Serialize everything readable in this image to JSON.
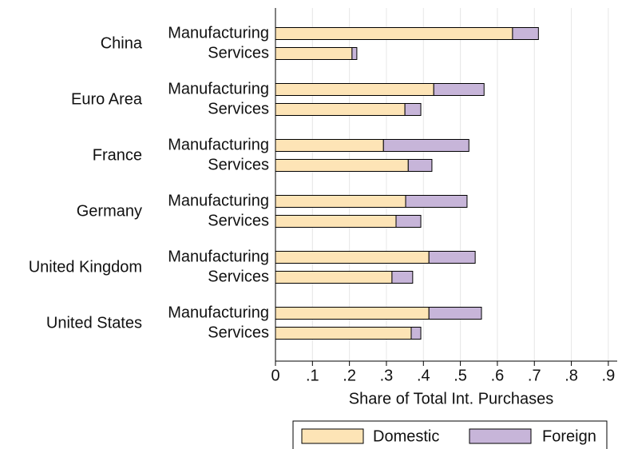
{
  "chart_data": {
    "type": "stacked-barh",
    "groups": [
      "China",
      "Euro Area",
      "France",
      "Germany",
      "United Kingdom",
      "United States"
    ],
    "categories": [
      "Manufacturing",
      "Services",
      "Manufacturing",
      "Services",
      "Manufacturing",
      "Services",
      "Manufacturing",
      "Services",
      "Manufacturing",
      "Services",
      "Manufacturing",
      "Services"
    ],
    "series": [
      {
        "name": "Domestic",
        "color": "#fde4b6",
        "values": [
          0.641,
          0.207,
          0.428,
          0.35,
          0.292,
          0.359,
          0.352,
          0.326,
          0.415,
          0.315,
          0.415,
          0.367
        ]
      },
      {
        "name": "Foreign",
        "color": "#c7b5d9",
        "values": [
          0.07,
          0.013,
          0.136,
          0.043,
          0.231,
          0.064,
          0.166,
          0.067,
          0.125,
          0.056,
          0.142,
          0.026
        ]
      }
    ],
    "xlabel": "Share of Total Int. Purchases",
    "xlim": [
      0,
      0.924
    ],
    "xticks": [
      0,
      {
        "value": 0.1,
        "label": ".1"
      },
      {
        "value": 0.2,
        "label": ".2"
      },
      {
        "value": 0.3,
        "label": ".3"
      },
      {
        "value": 0.4,
        "label": ".4"
      },
      {
        "value": 0.5,
        "label": ".5"
      },
      {
        "value": 0.6,
        "label": ".6"
      },
      {
        "value": 0.7,
        "label": ".7"
      },
      {
        "value": 0.8,
        "label": ".8"
      },
      {
        "value": 0.9,
        "label": ".9"
      }
    ],
    "grid": true,
    "legend": "bottom"
  }
}
